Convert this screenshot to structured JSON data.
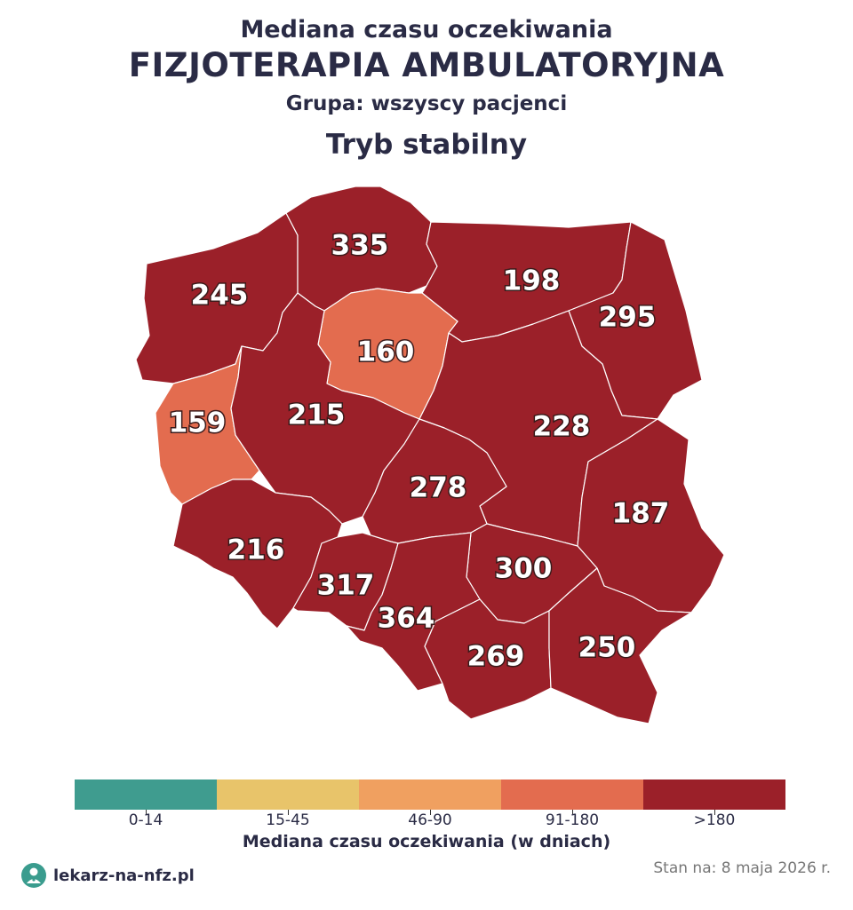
{
  "header": {
    "title_top": "Mediana czasu oczekiwania",
    "title_main": "FIZJOTERAPIA AMBULATORYJNA",
    "group": "Grupa: wszyscy pacjenci",
    "mode": "Tryb stabilny"
  },
  "colors": {
    "bin_0_14": "#3f9c8f",
    "bin_15_45": "#e8c46a",
    "bin_46_90": "#f0a060",
    "bin_91_180": "#e36c4f",
    "bin_over_180": "#9b2029",
    "border": "#ffffff"
  },
  "regions": [
    {
      "id": "zachodniopomorskie",
      "value": "245",
      "bin": "bin_over_180"
    },
    {
      "id": "pomorskie",
      "value": "335",
      "bin": "bin_over_180"
    },
    {
      "id": "warminsko-mazurskie",
      "value": "198",
      "bin": "bin_over_180"
    },
    {
      "id": "podlaskie",
      "value": "295",
      "bin": "bin_over_180"
    },
    {
      "id": "kujawsko-pomorskie",
      "value": "160",
      "bin": "bin_91_180"
    },
    {
      "id": "lubuskie",
      "value": "159",
      "bin": "bin_91_180"
    },
    {
      "id": "wielkopolskie",
      "value": "215",
      "bin": "bin_over_180"
    },
    {
      "id": "mazowieckie",
      "value": "228",
      "bin": "bin_over_180"
    },
    {
      "id": "lodzkie",
      "value": "278",
      "bin": "bin_over_180"
    },
    {
      "id": "lubelskie",
      "value": "187",
      "bin": "bin_over_180"
    },
    {
      "id": "dolnoslaskie",
      "value": "216",
      "bin": "bin_over_180"
    },
    {
      "id": "opolskie",
      "value": "317",
      "bin": "bin_over_180"
    },
    {
      "id": "swietokrzyskie",
      "value": "300",
      "bin": "bin_over_180"
    },
    {
      "id": "slaskie",
      "value": "364",
      "bin": "bin_over_180"
    },
    {
      "id": "malopolskie",
      "value": "269",
      "bin": "bin_over_180"
    },
    {
      "id": "podkarpackie",
      "value": "250",
      "bin": "bin_over_180"
    }
  ],
  "legend": {
    "bins": [
      {
        "label": "0-14",
        "color": "#3f9c8f"
      },
      {
        "label": "15-45",
        "color": "#e8c46a"
      },
      {
        "label": "46-90",
        "color": "#f0a060"
      },
      {
        "label": "91-180",
        "color": "#e36c4f"
      },
      {
        "label": ">180",
        "color": "#9b2029"
      }
    ],
    "title": "Mediana czasu oczekiwania (w dniach)"
  },
  "footer": {
    "site": "lekarz-na-nfz.pl",
    "logo_icon": "doctor-icon",
    "date": "Stan na: 8 maja 2026 r."
  }
}
